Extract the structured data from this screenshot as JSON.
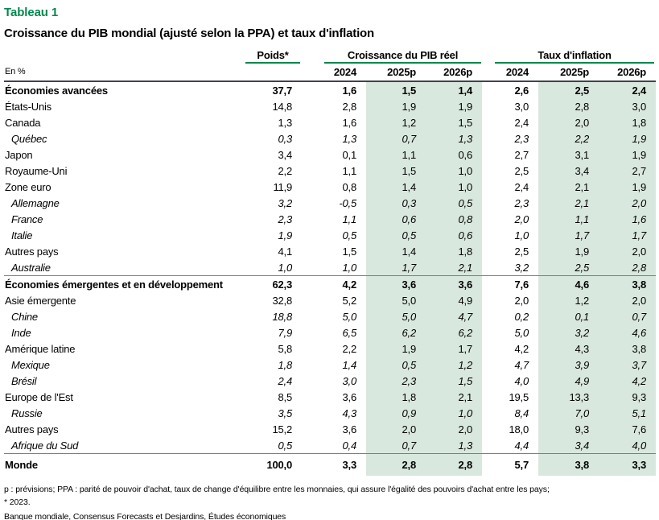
{
  "page": {
    "title": "Tableau 1",
    "subtitle": "Croissance du PIB mondial (ajusté selon la PPA) et taux d'inflation",
    "unit_label": "En %"
  },
  "header": {
    "poids": "Poids*",
    "groups": [
      {
        "label": "Croissance du PIB réel"
      },
      {
        "label": "Taux d'inflation"
      }
    ],
    "years": [
      "2024",
      "2025p",
      "2026p",
      "2024",
      "2025p",
      "2026p"
    ]
  },
  "table": {
    "rows": [
      {
        "label": "Économies avancées",
        "style": "section",
        "values": [
          "37,7",
          "1,6",
          "1,5",
          "1,4",
          "2,6",
          "2,5",
          "2,4"
        ]
      },
      {
        "label": "États-Unis",
        "style": "country",
        "values": [
          "14,8",
          "2,8",
          "1,9",
          "1,9",
          "3,0",
          "2,8",
          "3,0"
        ]
      },
      {
        "label": "Canada",
        "style": "country",
        "values": [
          "1,3",
          "1,6",
          "1,2",
          "1,5",
          "2,4",
          "2,0",
          "1,8"
        ]
      },
      {
        "label": "Québec",
        "style": "sub",
        "values": [
          "0,3",
          "1,3",
          "0,7",
          "1,3",
          "2,3",
          "2,2",
          "1,9"
        ]
      },
      {
        "label": "Japon",
        "style": "country",
        "values": [
          "3,4",
          "0,1",
          "1,1",
          "0,6",
          "2,7",
          "3,1",
          "1,9"
        ]
      },
      {
        "label": "Royaume-Uni",
        "style": "country",
        "values": [
          "2,2",
          "1,1",
          "1,5",
          "1,0",
          "2,5",
          "3,4",
          "2,7"
        ]
      },
      {
        "label": "Zone euro",
        "style": "country",
        "values": [
          "11,9",
          "0,8",
          "1,4",
          "1,0",
          "2,4",
          "2,1",
          "1,9"
        ]
      },
      {
        "label": "Allemagne",
        "style": "sub",
        "values": [
          "3,2",
          "-0,5",
          "0,3",
          "0,5",
          "2,3",
          "2,1",
          "2,0"
        ]
      },
      {
        "label": "France",
        "style": "sub",
        "values": [
          "2,3",
          "1,1",
          "0,6",
          "0,8",
          "2,0",
          "1,1",
          "1,6"
        ]
      },
      {
        "label": "Italie",
        "style": "sub",
        "values": [
          "1,9",
          "0,5",
          "0,5",
          "0,6",
          "1,0",
          "1,7",
          "1,7"
        ]
      },
      {
        "label": "Autres pays",
        "style": "country",
        "values": [
          "4,1",
          "1,5",
          "1,4",
          "1,8",
          "2,5",
          "1,9",
          "2,0"
        ]
      },
      {
        "label": "Australie",
        "style": "sub",
        "values": [
          "1,0",
          "1,0",
          "1,7",
          "2,1",
          "3,2",
          "2,5",
          "2,8"
        ]
      },
      {
        "label": "Économies émergentes et en développement",
        "style": "section",
        "separator": true,
        "values": [
          "62,3",
          "4,2",
          "3,6",
          "3,6",
          "7,6",
          "4,6",
          "3,8"
        ]
      },
      {
        "label": "Asie émergente",
        "style": "country",
        "values": [
          "32,8",
          "5,2",
          "5,0",
          "4,9",
          "2,0",
          "1,2",
          "2,0"
        ]
      },
      {
        "label": "Chine",
        "style": "sub",
        "values": [
          "18,8",
          "5,0",
          "5,0",
          "4,7",
          "0,2",
          "0,1",
          "0,7"
        ]
      },
      {
        "label": "Inde",
        "style": "sub",
        "values": [
          "7,9",
          "6,5",
          "6,2",
          "6,2",
          "5,0",
          "3,2",
          "4,6"
        ]
      },
      {
        "label": "Amérique latine",
        "style": "country",
        "values": [
          "5,8",
          "2,2",
          "1,9",
          "1,7",
          "4,2",
          "4,3",
          "3,8"
        ]
      },
      {
        "label": "Mexique",
        "style": "sub",
        "values": [
          "1,8",
          "1,4",
          "0,5",
          "1,2",
          "4,7",
          "3,9",
          "3,7"
        ]
      },
      {
        "label": "Brésil",
        "style": "sub",
        "values": [
          "2,4",
          "3,0",
          "2,3",
          "1,5",
          "4,0",
          "4,9",
          "4,2"
        ]
      },
      {
        "label": "Europe de l'Est",
        "style": "country",
        "values": [
          "8,5",
          "3,6",
          "1,8",
          "2,1",
          "19,5",
          "13,3",
          "9,3"
        ]
      },
      {
        "label": "Russie",
        "style": "sub",
        "values": [
          "3,5",
          "4,3",
          "0,9",
          "1,0",
          "8,4",
          "7,0",
          "5,1"
        ]
      },
      {
        "label": "Autres pays",
        "style": "country",
        "values": [
          "15,2",
          "3,6",
          "2,0",
          "2,0",
          "18,0",
          "9,3",
          "7,6"
        ]
      },
      {
        "label": "Afrique du Sud",
        "style": "sub",
        "values": [
          "0,5",
          "0,4",
          "0,7",
          "1,3",
          "4,4",
          "3,4",
          "4,0"
        ]
      },
      {
        "label": "Monde",
        "style": "section",
        "separator": true,
        "tall": true,
        "values": [
          "100,0",
          "3,3",
          "2,8",
          "2,8",
          "5,7",
          "3,8",
          "3,3"
        ]
      }
    ]
  },
  "footnotes": {
    "line1": "p : prévisions; PPA : parité de pouvoir d'achat, taux de change d'équilibre entre les monnaies, qui assure l'égalité des pouvoirs d'achat entre les pays;",
    "line2": "* 2023.",
    "source": "Banque mondiale, Consensus Forecasts et Desjardins, Études économiques"
  },
  "colors": {
    "accent_green": "#00874E",
    "forecast_shade_green": "#D9E8DE",
    "header_rule_dark": "#3F434A",
    "separator_gray": "#7C7C7C"
  },
  "chart_data": {
    "type": "table",
    "title": "Croissance du PIB mondial (ajusté selon la PPA) et taux d'inflation",
    "unit": "En %",
    "column_groups": [
      "Poids*",
      "Croissance du PIB réel",
      "Taux d'inflation"
    ],
    "columns": [
      "Poids* (2023)",
      "PIB réel 2024",
      "PIB réel 2025p",
      "PIB réel 2026p",
      "Inflation 2024",
      "Inflation 2025p",
      "Inflation 2026p"
    ],
    "forecast_columns": [
      "PIB réel 2025p",
      "PIB réel 2026p",
      "Inflation 2025p",
      "Inflation 2026p"
    ],
    "rows": [
      {
        "label": "Économies avancées",
        "values": [
          37.7,
          1.6,
          1.5,
          1.4,
          2.6,
          2.5,
          2.4
        ]
      },
      {
        "label": "États-Unis",
        "values": [
          14.8,
          2.8,
          1.9,
          1.9,
          3.0,
          2.8,
          3.0
        ]
      },
      {
        "label": "Canada",
        "values": [
          1.3,
          1.6,
          1.2,
          1.5,
          2.4,
          2.0,
          1.8
        ]
      },
      {
        "label": "Québec",
        "values": [
          0.3,
          1.3,
          0.7,
          1.3,
          2.3,
          2.2,
          1.9
        ]
      },
      {
        "label": "Japon",
        "values": [
          3.4,
          0.1,
          1.1,
          0.6,
          2.7,
          3.1,
          1.9
        ]
      },
      {
        "label": "Royaume-Uni",
        "values": [
          2.2,
          1.1,
          1.5,
          1.0,
          2.5,
          3.4,
          2.7
        ]
      },
      {
        "label": "Zone euro",
        "values": [
          11.9,
          0.8,
          1.4,
          1.0,
          2.4,
          2.1,
          1.9
        ]
      },
      {
        "label": "Allemagne",
        "values": [
          3.2,
          -0.5,
          0.3,
          0.5,
          2.3,
          2.1,
          2.0
        ]
      },
      {
        "label": "France",
        "values": [
          2.3,
          1.1,
          0.6,
          0.8,
          2.0,
          1.1,
          1.6
        ]
      },
      {
        "label": "Italie",
        "values": [
          1.9,
          0.5,
          0.5,
          0.6,
          1.0,
          1.7,
          1.7
        ]
      },
      {
        "label": "Autres pays",
        "values": [
          4.1,
          1.5,
          1.4,
          1.8,
          2.5,
          1.9,
          2.0
        ]
      },
      {
        "label": "Australie",
        "values": [
          1.0,
          1.0,
          1.7,
          2.1,
          3.2,
          2.5,
          2.8
        ]
      },
      {
        "label": "Économies émergentes et en développement",
        "values": [
          62.3,
          4.2,
          3.6,
          3.6,
          7.6,
          4.6,
          3.8
        ]
      },
      {
        "label": "Asie émergente",
        "values": [
          32.8,
          5.2,
          5.0,
          4.9,
          2.0,
          1.2,
          2.0
        ]
      },
      {
        "label": "Chine",
        "values": [
          18.8,
          5.0,
          5.0,
          4.7,
          0.2,
          0.1,
          0.7
        ]
      },
      {
        "label": "Inde",
        "values": [
          7.9,
          6.5,
          6.2,
          6.2,
          5.0,
          3.2,
          4.6
        ]
      },
      {
        "label": "Amérique latine",
        "values": [
          5.8,
          2.2,
          1.9,
          1.7,
          4.2,
          4.3,
          3.8
        ]
      },
      {
        "label": "Mexique",
        "values": [
          1.8,
          1.4,
          0.5,
          1.2,
          4.7,
          3.9,
          3.7
        ]
      },
      {
        "label": "Brésil",
        "values": [
          2.4,
          3.0,
          2.3,
          1.5,
          4.0,
          4.9,
          4.2
        ]
      },
      {
        "label": "Europe de l'Est",
        "values": [
          8.5,
          3.6,
          1.8,
          2.1,
          19.5,
          13.3,
          9.3
        ]
      },
      {
        "label": "Russie",
        "values": [
          3.5,
          4.3,
          0.9,
          1.0,
          8.4,
          7.0,
          5.1
        ]
      },
      {
        "label": "Autres pays",
        "values": [
          15.2,
          3.6,
          2.0,
          2.0,
          18.0,
          9.3,
          7.6
        ]
      },
      {
        "label": "Afrique du Sud",
        "values": [
          0.5,
          0.4,
          0.7,
          1.3,
          4.4,
          3.4,
          4.0
        ]
      },
      {
        "label": "Monde",
        "values": [
          100.0,
          3.3,
          2.8,
          2.8,
          5.7,
          3.8,
          3.3
        ]
      }
    ]
  }
}
